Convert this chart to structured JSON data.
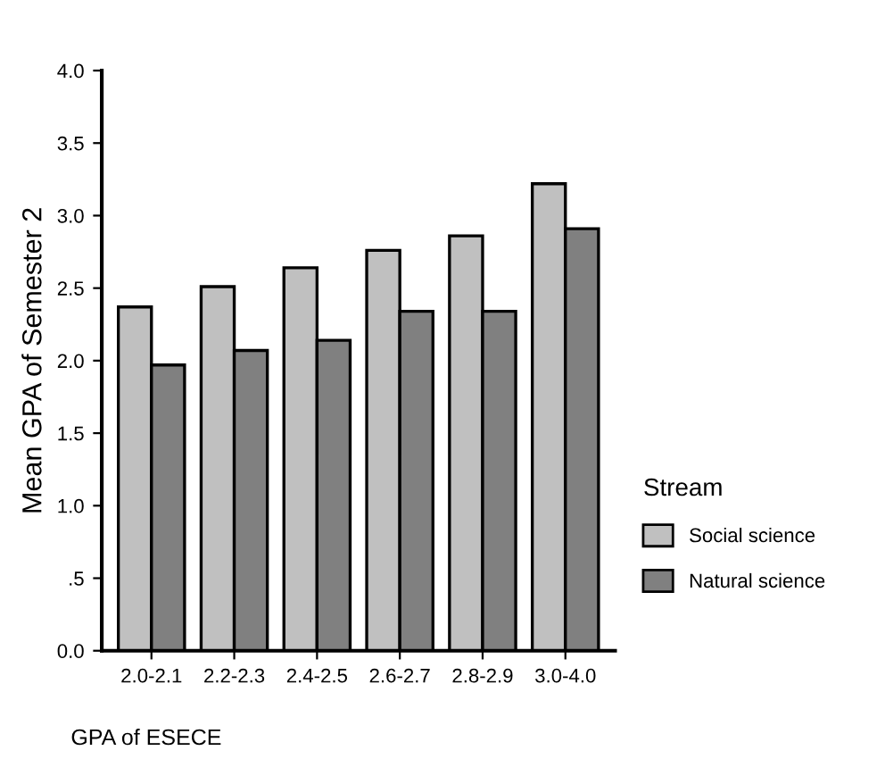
{
  "chart_data": {
    "type": "bar",
    "xlabel": "GPA of ESECE",
    "ylabel": "Mean GPA of Semester 2",
    "legend_title": "Stream",
    "legend": "right",
    "categories": [
      "2.0-2.1",
      "2.2-2.3",
      "2.4-2.5",
      "2.6-2.7",
      "2.8-2.9",
      "3.0-4.0"
    ],
    "series": [
      {
        "name": "Social science",
        "color": "#c0c0c0",
        "values": [
          2.37,
          2.51,
          2.64,
          2.76,
          2.86,
          3.22
        ]
      },
      {
        "name": "Natural science",
        "color": "#808080",
        "values": [
          1.97,
          2.07,
          2.14,
          2.34,
          2.34,
          2.91
        ]
      }
    ],
    "ylim": [
      0,
      4
    ],
    "yticks": [
      {
        "value": 0,
        "label": "0.0"
      },
      {
        "value": 0.5,
        "label": ".5"
      },
      {
        "value": 1,
        "label": "1.0"
      },
      {
        "value": 1.5,
        "label": "1.5"
      },
      {
        "value": 2,
        "label": "2.0"
      },
      {
        "value": 2.5,
        "label": "2.5"
      },
      {
        "value": 3,
        "label": "3.0"
      },
      {
        "value": 3.5,
        "label": "3.5"
      },
      {
        "value": 4,
        "label": "4.0"
      }
    ],
    "grid": false
  }
}
